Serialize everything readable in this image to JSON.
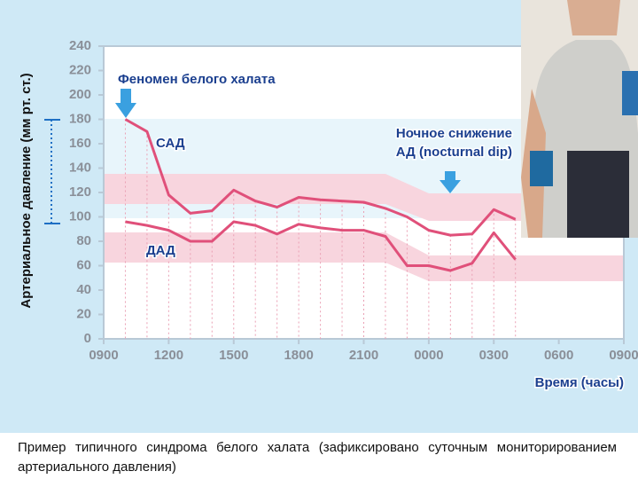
{
  "chart_data": {
    "type": "line",
    "y_label": "Артериальное давление (мм рт. ст.)",
    "x_label": "Время (часы)",
    "categories": [
      "0900",
      null,
      null,
      "1200",
      null,
      null,
      "1500",
      null,
      null,
      "1800",
      null,
      null,
      "2100",
      null,
      null,
      "0000",
      null,
      null,
      "0300",
      null,
      null,
      "0600",
      null,
      null,
      "0900"
    ],
    "series": [
      {
        "name": "САД",
        "color": "#e0507a",
        "values": [
          null,
          180,
          170,
          118,
          103,
          105,
          122,
          113,
          108,
          116,
          114,
          113,
          112,
          107,
          100,
          89,
          85,
          86,
          106,
          98,
          null,
          null,
          null,
          null,
          null
        ]
      },
      {
        "name": "ДАД",
        "color": "#e0507a",
        "values": [
          null,
          96,
          93,
          89,
          80,
          80,
          96,
          93,
          86,
          94,
          91,
          89,
          89,
          84,
          60,
          60,
          56,
          62,
          87,
          65,
          null,
          null,
          null,
          null,
          null
        ]
      }
    ],
    "ylim": [
      0,
      240
    ],
    "yticks": [
      0,
      20,
      40,
      60,
      80,
      100,
      120,
      140,
      160,
      180,
      200,
      220,
      240
    ],
    "annotations": [
      "Феномен белого халата",
      [
        "Ночное снижение",
        "АД (nocturnal dip)"
      ]
    ],
    "caption": "Пример типичного синдрома белого халата (зафиксировано суточным мониторированием артериального давления)"
  }
}
